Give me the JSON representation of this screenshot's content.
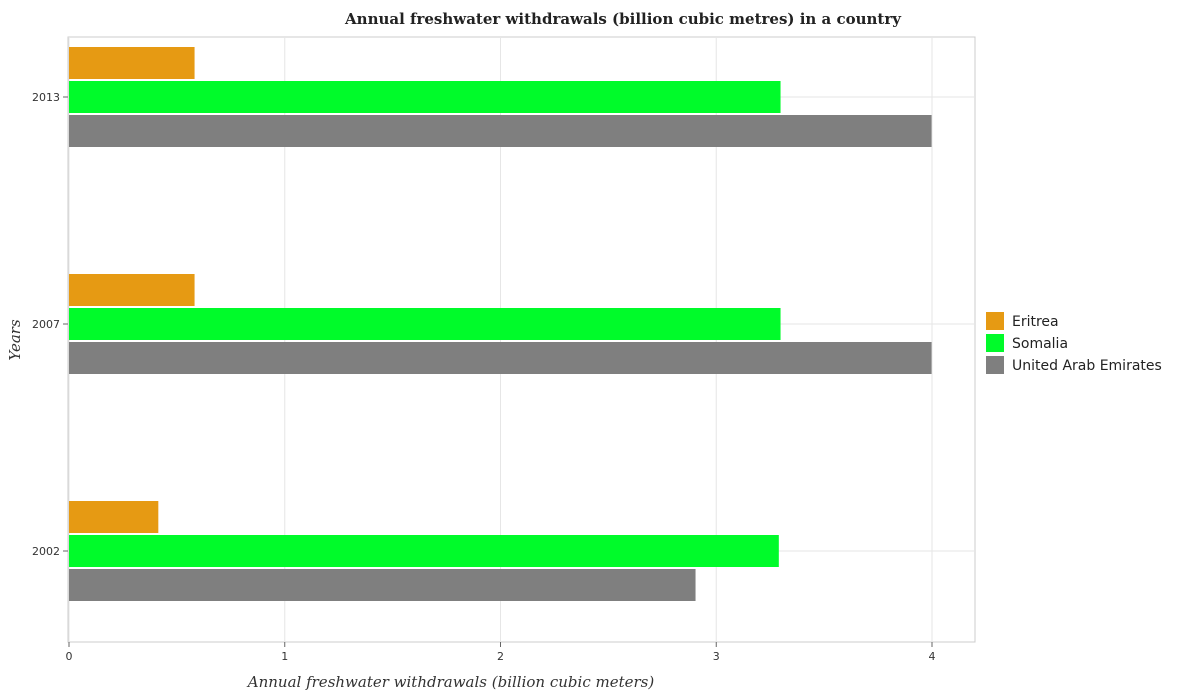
{
  "chart_data": {
    "type": "bar",
    "orientation": "horizontal",
    "title": "Annual freshwater withdrawals (billion cubic metres) in a country",
    "xlabel": "Annual freshwater withdrawals (billion cubic meters)",
    "ylabel": "Years",
    "categories": [
      "2002",
      "2007",
      "2013"
    ],
    "xlim": [
      0,
      4.2
    ],
    "xticks": [
      "0",
      "1",
      "2",
      "3",
      "4"
    ],
    "grid": true,
    "legend_position": "right",
    "series": [
      {
        "name": "Eritrea",
        "color": "#e69a13",
        "values": [
          0.414,
          0.582,
          0.582
        ]
      },
      {
        "name": "Somalia",
        "color": "#00fb2a",
        "values": [
          3.29,
          3.298,
          3.298
        ]
      },
      {
        "name": "United Arab Emirates",
        "color": "#7f7f7f",
        "values": [
          2.904,
          3.998,
          3.998
        ]
      }
    ]
  }
}
